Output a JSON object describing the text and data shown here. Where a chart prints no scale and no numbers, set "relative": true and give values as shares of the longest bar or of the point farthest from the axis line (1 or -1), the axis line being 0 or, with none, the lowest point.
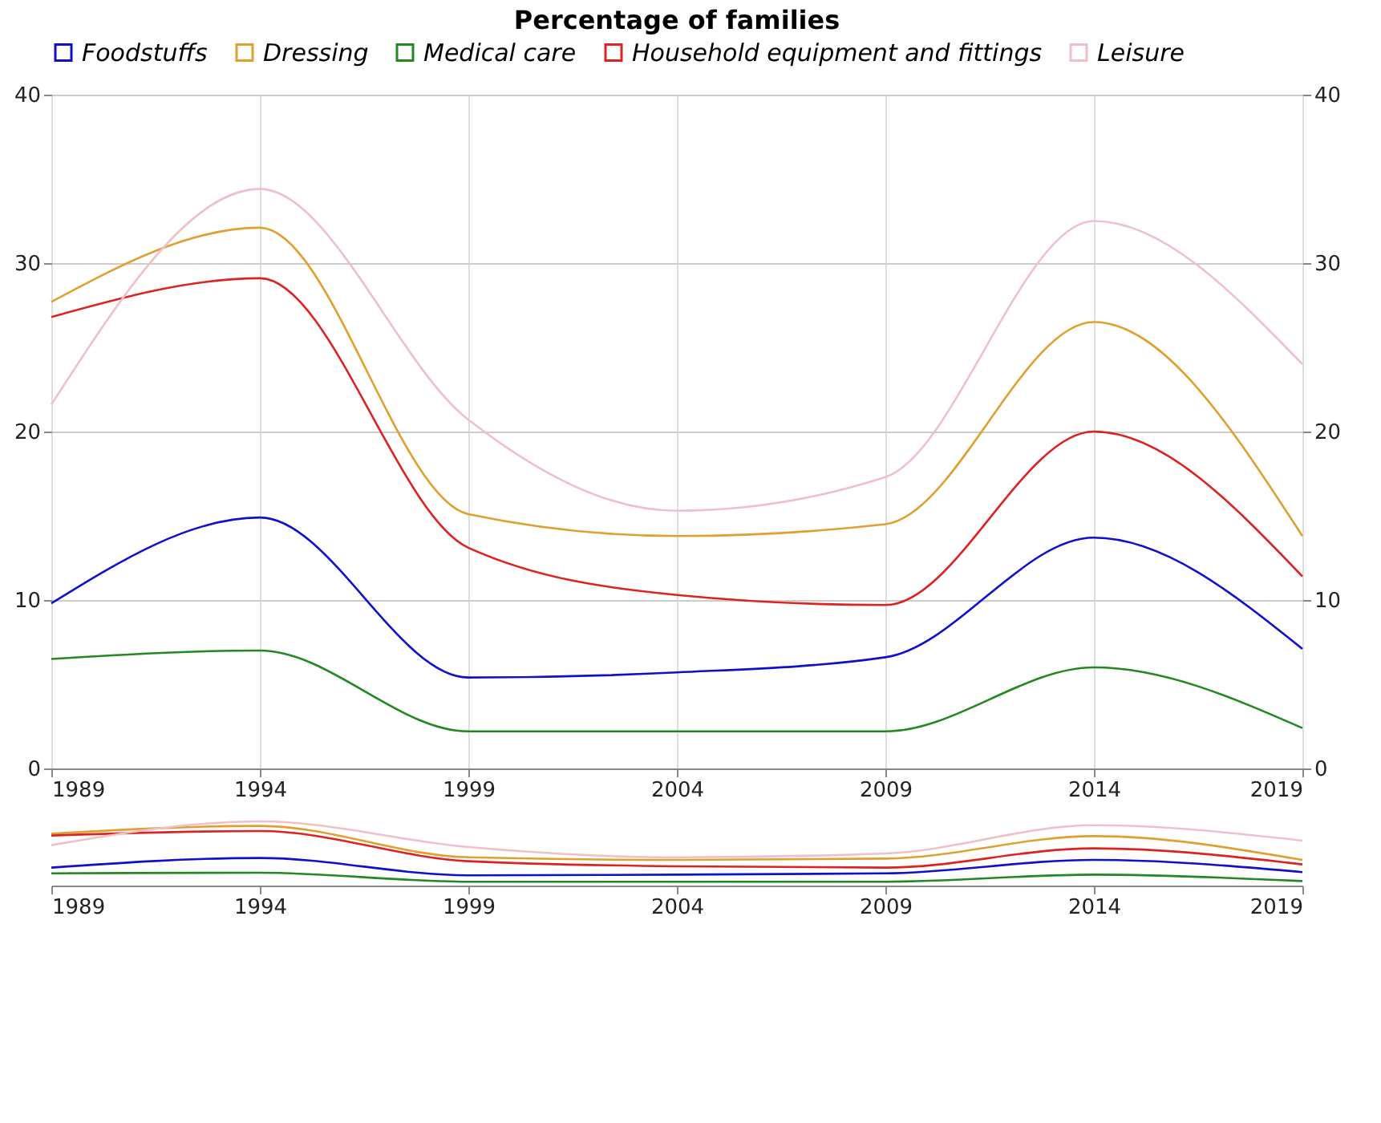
{
  "chart_data": [
    {
      "type": "line",
      "subtitle": "Percentage of families",
      "x": [
        1989,
        1994,
        1999,
        2004,
        2009,
        2014,
        2019
      ],
      "series": [
        {
          "name": "Foodstuffs",
          "color": "#1010cc",
          "values": [
            9.8,
            14.9,
            5.4,
            5.7,
            6.6,
            13.7,
            7.1
          ]
        },
        {
          "name": "Dressing",
          "color": "#e0a030",
          "values": [
            27.7,
            32.1,
            15.1,
            13.8,
            14.5,
            26.5,
            13.8
          ]
        },
        {
          "name": "Medical care",
          "color": "#228822",
          "values": [
            6.5,
            7.0,
            2.2,
            2.2,
            2.2,
            6.0,
            2.4
          ]
        },
        {
          "name": "Household equipment and fittings",
          "color": "#dd2222",
          "values": [
            26.8,
            29.1,
            13.1,
            10.3,
            9.7,
            20.0,
            11.4
          ]
        },
        {
          "name": "Leisure",
          "color": "#eec0c8",
          "values": [
            21.6,
            34.4,
            20.7,
            15.3,
            17.3,
            32.5,
            24.0
          ]
        }
      ],
      "xlim": [
        1989,
        2019
      ],
      "xticks": [
        1989,
        1994,
        1999,
        2004,
        2009,
        2014,
        2019
      ],
      "ylim": [
        0,
        40
      ],
      "yticks": [
        0,
        10,
        20,
        30,
        40
      ],
      "y2lim": [
        0,
        40
      ],
      "y2ticks": [
        0,
        10,
        20,
        30,
        40
      ],
      "grid": true,
      "legend": "top",
      "marker": "none",
      "line_style": "solid"
    },
    {
      "type": "line",
      "x": [
        1989,
        1994,
        1999,
        2004,
        2009,
        2014,
        2019
      ],
      "series": [
        {
          "color": "#1010cc",
          "values": [
            0.28,
            0.43,
            0.16,
            0.17,
            0.19,
            0.4,
            0.21
          ]
        },
        {
          "color": "#e0a030",
          "values": [
            0.81,
            0.93,
            0.44,
            0.4,
            0.42,
            0.77,
            0.4
          ]
        },
        {
          "color": "#228822",
          "values": [
            0.19,
            0.2,
            0.06,
            0.06,
            0.06,
            0.17,
            0.07
          ]
        },
        {
          "color": "#dd2222",
          "values": [
            0.78,
            0.85,
            0.38,
            0.3,
            0.28,
            0.58,
            0.33
          ]
        },
        {
          "color": "#eec0c8",
          "values": [
            0.63,
            1,
            0.6,
            0.44,
            0.5,
            0.94,
            0.7
          ]
        }
      ],
      "xlim": [
        1989,
        2019
      ],
      "xticks": [
        1989,
        1994,
        1999,
        2004,
        2009,
        2014,
        2019
      ],
      "relative": true,
      "tick_labels": "x",
      "grid": false,
      "legend": false
    }
  ]
}
